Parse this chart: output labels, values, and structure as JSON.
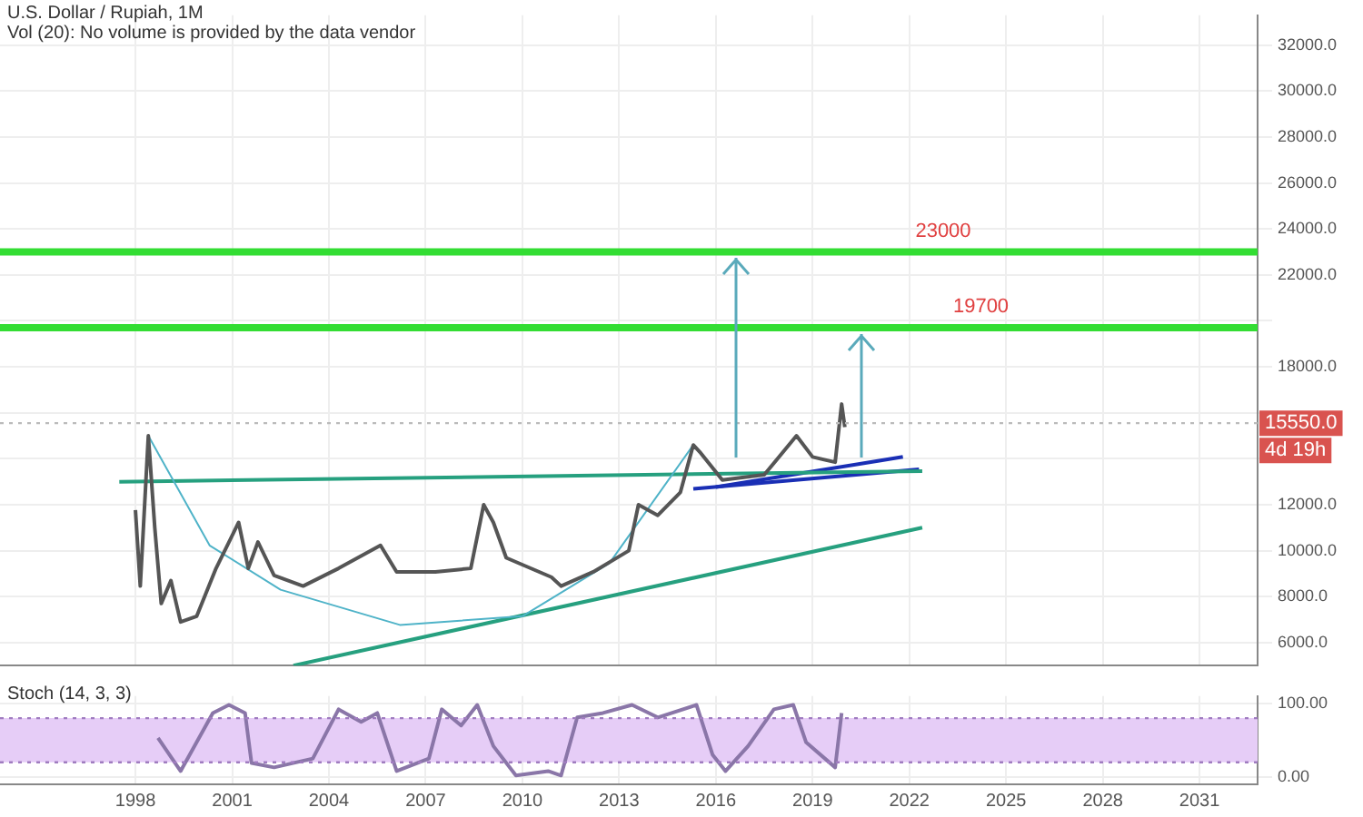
{
  "chart_data": [
    {
      "type": "line",
      "title": "U.S. Dollar / Rupiah, 1M",
      "subtitle": "Vol (20): No volume is provided by the data vendor",
      "xlim": [
        1993.8,
        2032.8
      ],
      "ylim": [
        5000,
        33300
      ],
      "yticks": [
        {
          "value": 6000,
          "label": "6000.0"
        },
        {
          "value": 8000,
          "label": "8000.0"
        },
        {
          "value": 10000,
          "label": "10000.0"
        },
        {
          "value": 12000,
          "label": "12000.0"
        },
        {
          "value": 14000,
          "label": null
        },
        {
          "value": 16000,
          "label": null
        },
        {
          "value": 18000,
          "label": "18000.0"
        },
        {
          "value": 20000,
          "label": null
        },
        {
          "value": 22000,
          "label": "22000.0"
        },
        {
          "value": 24000,
          "label": "24000.0"
        },
        {
          "value": 26000,
          "label": "26000.0"
        },
        {
          "value": 28000,
          "label": "28000.0"
        },
        {
          "value": 30000,
          "label": "30000.0"
        },
        {
          "value": 32000,
          "label": "32000.0"
        }
      ],
      "xticks": [
        1998,
        2001,
        2004,
        2007,
        2010,
        2013,
        2016,
        2019,
        2022,
        2025,
        2028,
        2031
      ],
      "tick_labels": "y",
      "grid": true,
      "legend": false,
      "series": [
        {
          "color": "#555555",
          "x": [
            1998.0,
            1998.15,
            1998.4,
            1998.6,
            1998.8,
            1999.1,
            1999.4,
            1999.9,
            2000.5,
            2001.2,
            2001.5,
            2001.8,
            2002.3,
            2003.2,
            2004.3,
            2005.6,
            2006.1,
            2007.3,
            2008.4,
            2008.8,
            2009.1,
            2009.5,
            2010.9,
            2011.2,
            2012.2,
            2013.3,
            2013.6,
            2014.2,
            2014.9,
            2015.3,
            2015.5,
            2016.2,
            2017.5,
            2018.5,
            2019.0,
            2019.7,
            2019.9,
            2020.0
          ],
          "values": [
            11770,
            8460,
            15000,
            11000,
            7700,
            8700,
            6900,
            7150,
            9230,
            11230,
            9230,
            10380,
            8920,
            8460,
            9230,
            10230,
            9080,
            9080,
            9230,
            12000,
            11230,
            9690,
            8850,
            8460,
            9080,
            10000,
            12000,
            11540,
            12540,
            14600,
            14300,
            13080,
            13300,
            15000,
            14080,
            13850,
            16380,
            15380
          ]
        },
        {
          "color": "#4fb3c8",
          "x": [
            1998.4,
            2000.3,
            2002.5,
            2006.2,
            2010.0,
            2012.7,
            2015.3
          ],
          "values": [
            15000,
            10230,
            8300,
            6770,
            7150,
            9460,
            14600
          ]
        },
        {
          "color": "#26a07f",
          "x": [
            1997.5,
            2022.4
          ],
          "values": [
            13000,
            13460
          ]
        },
        {
          "color": "#26a07f",
          "x": [
            2002.9,
            2022.4
          ],
          "values": [
            5000,
            11000
          ]
        },
        {
          "color": "#1a2fb5",
          "x": [
            2015.3,
            2022.3
          ],
          "values": [
            12690,
            13540
          ]
        },
        {
          "color": "#1a2fb5",
          "x": [
            2016.0,
            2021.8
          ],
          "values": [
            12770,
            14080
          ]
        }
      ],
      "ref_lines": [
        {
          "axis": "y",
          "value": 23000,
          "label": "23000",
          "color": "#33dd33"
        },
        {
          "axis": "y",
          "value": 19700,
          "label": "19700",
          "color": "#33dd33"
        },
        {
          "axis": "y",
          "value": 15550,
          "label": "15550.0",
          "color": "#bbbbbb",
          "line_style": "dotted"
        }
      ],
      "annotations": [
        "4d 19h"
      ]
    },
    {
      "type": "line",
      "title": "Stoch (14, 3, 3)",
      "xlim": [
        1993.8,
        2032.8
      ],
      "ylim": [
        -10,
        110
      ],
      "yticks": [
        {
          "value": 0,
          "label": "0.00"
        },
        {
          "value": 100,
          "label": "100.00"
        }
      ],
      "xticks": [
        1998,
        2001,
        2004,
        2007,
        2010,
        2013,
        2016,
        2019,
        2022,
        2025,
        2028,
        2031
      ],
      "grid": true,
      "legend": false,
      "bands": [
        {
          "axis": "y",
          "from": 20,
          "to": 80,
          "color": "#e6cdf7"
        }
      ],
      "ref_lines": [
        {
          "axis": "y",
          "value": 80,
          "color": "#a07cc0",
          "line_style": "dotted"
        },
        {
          "axis": "y",
          "value": 20,
          "color": "#a07cc0",
          "line_style": "dotted"
        }
      ],
      "series": [
        {
          "color": "#8a76a8",
          "x": [
            1998.7,
            1999.4,
            2000.4,
            2000.9,
            2001.4,
            2001.6,
            2002.3,
            2003.5,
            2004.3,
            2005.0,
            2005.5,
            2006.1,
            2007.1,
            2007.5,
            2008.1,
            2008.6,
            2009.1,
            2009.8,
            2010.8,
            2011.2,
            2011.7,
            2012.5,
            2013.4,
            2014.2,
            2015.4,
            2015.9,
            2016.3,
            2017.0,
            2017.8,
            2018.4,
            2018.8,
            2019.7,
            2019.9
          ],
          "values": [
            53,
            8,
            87,
            98,
            87,
            19,
            13,
            25,
            92,
            75,
            87,
            8,
            25,
            92,
            70,
            98,
            42,
            2,
            8,
            2,
            81,
            87,
            98,
            81,
            98,
            30,
            8,
            42,
            92,
            98,
            47,
            13,
            87
          ]
        }
      ]
    }
  ]
}
